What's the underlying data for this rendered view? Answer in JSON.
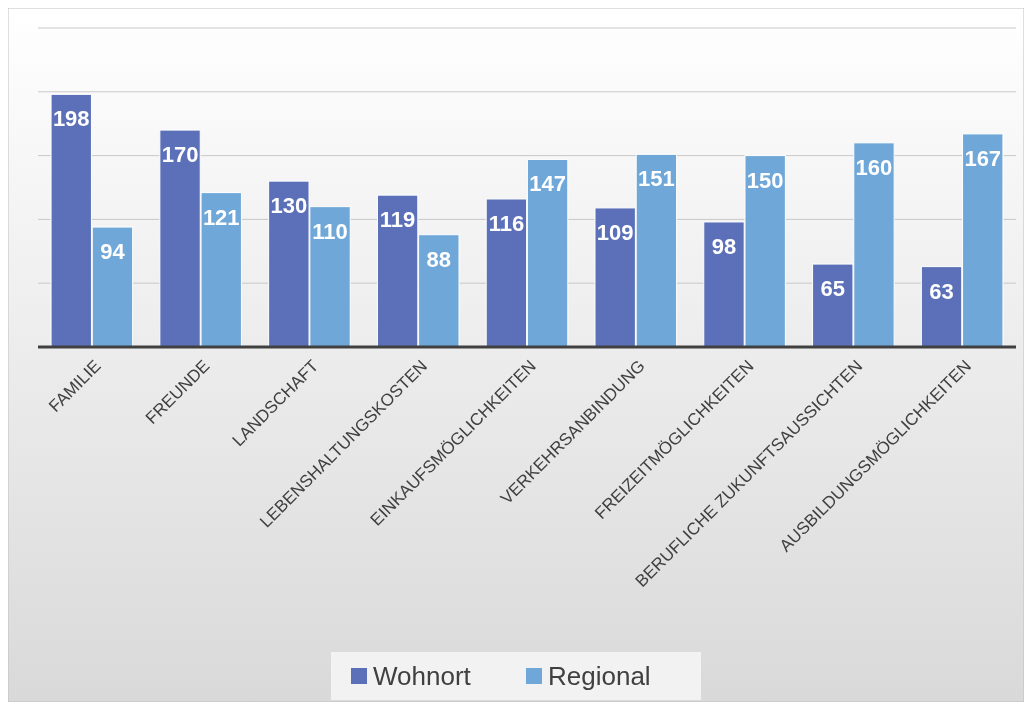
{
  "chart_data": {
    "type": "bar",
    "categories": [
      "FAMILIE",
      "FREUNDE",
      "LANDSCHAFT",
      "LEBENSHALTUNGSKOSTEN",
      "EINKAUFSMÖGLICHKEITEN",
      "VERKEHRSANBINDUNG",
      "FREIZEITMÖGLICHKEITEN",
      "BERUFLICHE ZUKUNFTSAUSSICHTEN",
      "AUSBILDUNGSMÖGLICHKEITEN"
    ],
    "series": [
      {
        "name": "Wohnort",
        "color": "#5b70b8",
        "values": [
          198,
          170,
          130,
          119,
          116,
          109,
          98,
          65,
          63
        ]
      },
      {
        "name": "Regional",
        "color": "#6fa7d8",
        "values": [
          94,
          121,
          110,
          88,
          147,
          151,
          150,
          160,
          167
        ]
      }
    ],
    "ylim": [
      0,
      250
    ],
    "yticks": [
      {
        "value": 0,
        "label": null
      },
      {
        "value": 50,
        "label": null
      },
      {
        "value": 100,
        "label": null
      },
      {
        "value": 150,
        "label": null
      },
      {
        "value": 200,
        "label": null
      },
      {
        "value": 250,
        "label": null
      }
    ],
    "grid": "y",
    "legend": "bottom",
    "data_labels": true,
    "tick_labels": "x"
  }
}
